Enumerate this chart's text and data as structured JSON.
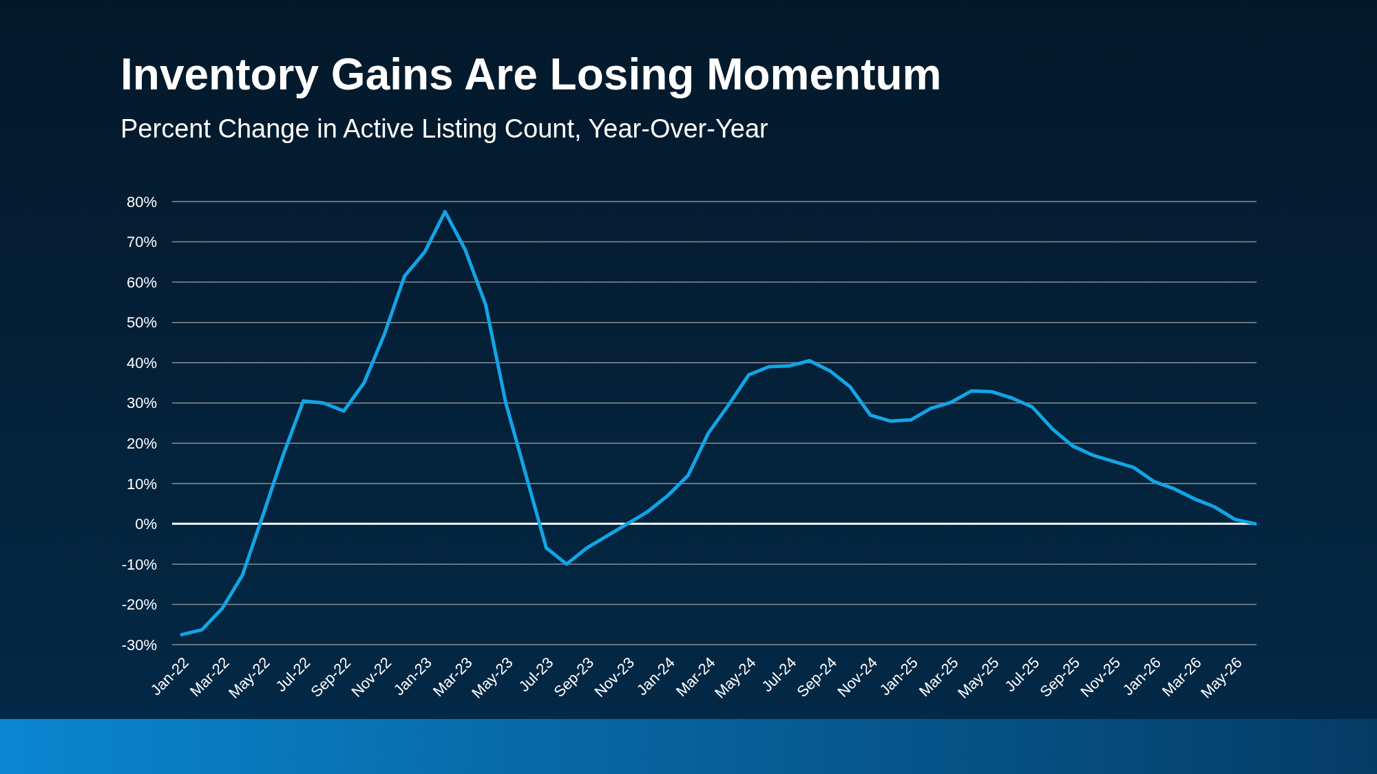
{
  "chart_data": {
    "type": "line",
    "title": "Inventory Gains Are Losing Momentum",
    "subtitle": "Percent Change in Active Listing Count, Year-Over-Year",
    "categories": [
      "Jan-22",
      null,
      "Mar-22",
      null,
      "May-22",
      null,
      "Jul-22",
      null,
      "Sep-22",
      null,
      "Nov-22",
      null,
      "Jan-23",
      null,
      "Mar-23",
      null,
      "May-23",
      null,
      "Jul-23",
      null,
      "Sep-23",
      null,
      "Nov-23",
      null,
      "Jan-24",
      null,
      "Mar-24",
      null,
      "May-24",
      null,
      "Jul-24",
      null,
      "Sep-24",
      null,
      "Nov-24",
      null,
      "Jan-25",
      null,
      "Mar-25",
      null,
      "May-25",
      null,
      "Jul-25",
      null,
      "Sep-25",
      null,
      "Nov-25",
      null,
      "Jan-26",
      null,
      "Mar-26",
      null,
      "May-26",
      null
    ],
    "series": [
      {
        "color": "#12a5e6",
        "values": [
          -27.5,
          -26.3,
          -21,
          -12.7,
          2,
          17,
          30.5,
          30,
          28,
          35,
          47,
          61.5,
          67.5,
          77.5,
          68,
          54.5,
          30,
          12,
          -6,
          -10,
          -6,
          -3,
          0,
          3,
          7,
          12,
          22.5,
          29.5,
          37,
          39,
          39.2,
          40.5,
          38,
          34,
          27,
          25.5,
          25.8,
          28.7,
          30.2,
          33,
          32.8,
          31.2,
          29,
          23.5,
          19.3,
          17,
          15.5,
          14,
          10.5,
          8.7,
          6.2,
          4.2,
          1.1,
          0
        ]
      }
    ],
    "ylim": [
      -30,
      80
    ],
    "yticks": [
      {
        "value": -30,
        "label": "-30%"
      },
      {
        "value": -20,
        "label": "-20%"
      },
      {
        "value": -10,
        "label": "-10%"
      },
      {
        "value": 0,
        "label": "0%"
      },
      {
        "value": 10,
        "label": "10%"
      },
      {
        "value": 20,
        "label": "20%"
      },
      {
        "value": 30,
        "label": "30%"
      },
      {
        "value": 40,
        "label": "40%"
      },
      {
        "value": 50,
        "label": "50%"
      },
      {
        "value": 60,
        "label": "60%"
      },
      {
        "value": 70,
        "label": "70%"
      },
      {
        "value": 80,
        "label": "80%"
      }
    ],
    "grid": "y",
    "marker": "none",
    "line_style": "solid"
  }
}
